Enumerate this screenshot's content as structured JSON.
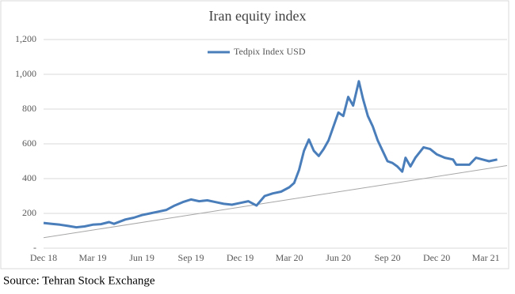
{
  "chart_data": {
    "type": "line",
    "title": "Iran equity index",
    "source": "Source: Tehran Stock Exchange",
    "xlim": [
      0,
      28.3
    ],
    "xticks": [
      {
        "value": 0,
        "label": "Dec 18"
      },
      {
        "value": 3,
        "label": "Mar 19"
      },
      {
        "value": 6,
        "label": "Jun 19"
      },
      {
        "value": 9,
        "label": "Sep 19"
      },
      {
        "value": 12,
        "label": "Dec 19"
      },
      {
        "value": 15,
        "label": "Mar 20"
      },
      {
        "value": 18,
        "label": "Jun 20"
      },
      {
        "value": 21,
        "label": "Sep 20"
      },
      {
        "value": 24,
        "label": "Dec 20"
      },
      {
        "value": 27,
        "label": "Mar 21"
      }
    ],
    "ylim": [
      0,
      1200
    ],
    "yticks": [
      {
        "value": 0,
        "label": "-"
      },
      200,
      400,
      600,
      800,
      {
        "value": 1000,
        "label": "1,000"
      },
      {
        "value": 1200,
        "label": "1,200"
      }
    ],
    "grid": true,
    "legend": "top",
    "series": [
      {
        "name": "Tedpix Index USD",
        "color": "#4a7ebb",
        "x": [
          0,
          0.5,
          1,
          1.5,
          2,
          2.5,
          3,
          3.5,
          4,
          4.3,
          5,
          5.5,
          6,
          6.5,
          7,
          7.5,
          8,
          8.5,
          9,
          9.5,
          10,
          10.5,
          11,
          11.5,
          12,
          12.5,
          13,
          13.5,
          14,
          14.5,
          15,
          15.3,
          15.6,
          15.9,
          16.2,
          16.5,
          16.8,
          17.1,
          17.4,
          17.7,
          18,
          18.3,
          18.6,
          18.9,
          19.25,
          19.5,
          19.8,
          20.1,
          20.4,
          20.7,
          21,
          21.3,
          21.6,
          21.9,
          22.1,
          22.4,
          22.7,
          23.2,
          23.6,
          24,
          24.5,
          25,
          25.2,
          25.6,
          26,
          26.4,
          26.8,
          27.2,
          27.7
        ],
        "values": [
          145,
          140,
          135,
          128,
          120,
          125,
          135,
          138,
          150,
          140,
          165,
          175,
          190,
          200,
          210,
          220,
          245,
          265,
          280,
          270,
          275,
          265,
          255,
          250,
          260,
          270,
          245,
          300,
          315,
          325,
          350,
          375,
          450,
          560,
          625,
          560,
          530,
          570,
          620,
          700,
          780,
          760,
          870,
          820,
          960,
          860,
          760,
          700,
          620,
          560,
          500,
          490,
          470,
          440,
          520,
          470,
          520,
          580,
          570,
          540,
          520,
          510,
          480,
          480,
          480,
          520,
          510,
          500,
          510
        ]
      }
    ],
    "trendline": {
      "color": "#a6a6a6",
      "x": [
        0,
        28.3
      ],
      "values": [
        60,
        475
      ]
    }
  }
}
